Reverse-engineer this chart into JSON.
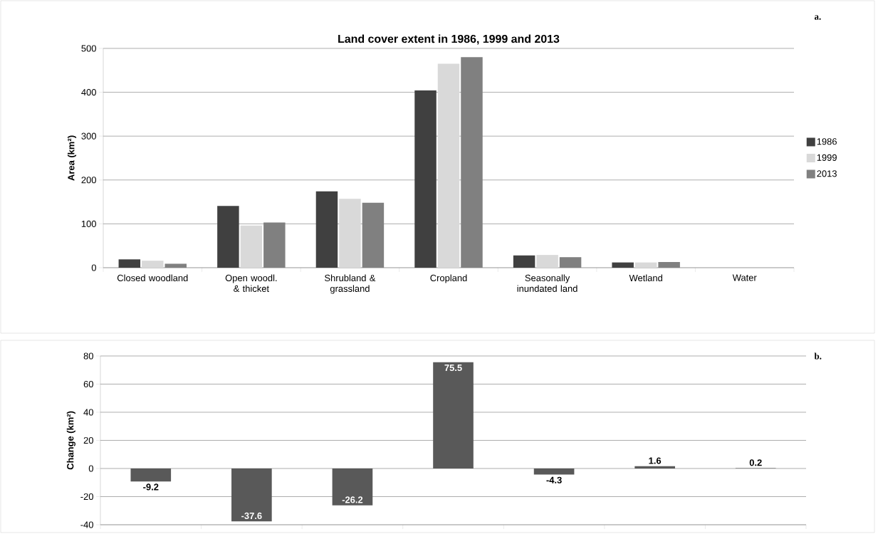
{
  "chart_data": [
    {
      "type": "bar",
      "title": "Land cover extent in 1986, 1999 and 2013",
      "ylabel": "Area (km²)",
      "categories": [
        "Closed woodland",
        "Open woodl. & thicket",
        "Shrubland & grassland",
        "Cropland",
        "Seasonally inundated land",
        "Wetland",
        "Water"
      ],
      "series": [
        {
          "name": "1986",
          "color": "#404040",
          "values": [
            19,
            141,
            174,
            404,
            28,
            12,
            null
          ]
        },
        {
          "name": "1999",
          "color": "#d9d9d9",
          "values": [
            16,
            96,
            157,
            465,
            29,
            12,
            null
          ]
        },
        {
          "name": "2013",
          "color": "#808080",
          "values": [
            9,
            103,
            148,
            480,
            24,
            13,
            null
          ]
        }
      ],
      "ylim": [
        0,
        500
      ],
      "yticks": [
        0,
        100,
        200,
        300,
        400,
        500
      ],
      "grid": "y",
      "legend": "right",
      "annotations": [
        "a."
      ]
    },
    {
      "type": "bar",
      "ylabel": "Change (km²)",
      "categories": [
        null,
        null,
        null,
        null,
        null,
        null,
        null
      ],
      "values": [
        -9.2,
        -37.6,
        -26.2,
        75.5,
        -4.3,
        1.6,
        0.2
      ],
      "color": "#595959",
      "value_labels": [
        "-9.2",
        "-37.6",
        "-26.2",
        "75.5",
        "-4.3",
        "1.6",
        "0.2"
      ],
      "ylim": [
        -40,
        80
      ],
      "yticks": [
        -40,
        -20,
        0,
        20,
        40,
        60,
        80
      ],
      "grid": "y",
      "tick_labels": "y",
      "annotations": [
        "b."
      ]
    }
  ]
}
